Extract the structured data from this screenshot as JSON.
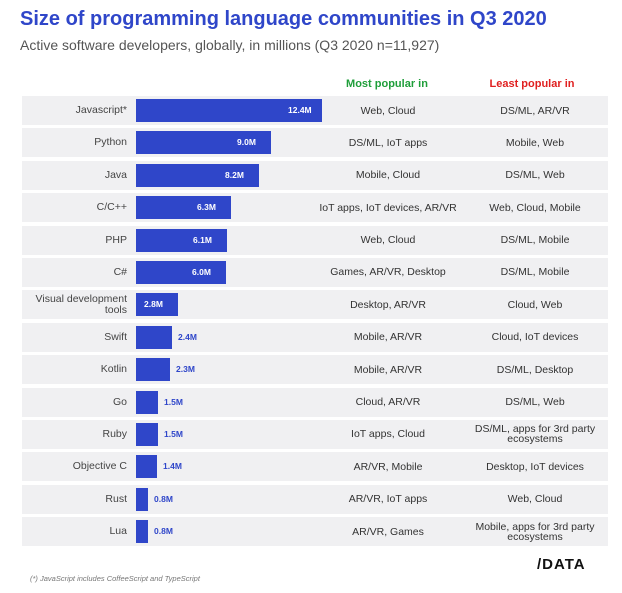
{
  "header": {
    "title": "Size of programming language communities in Q3 2020",
    "subtitle": "Active software developers, globally, in millions (Q3 2020 n=11,927)"
  },
  "columns": {
    "most_popular": "Most popular in",
    "least_popular": "Least popular in"
  },
  "colors": {
    "bar": "#2f46c9",
    "title": "#2f46c9",
    "most_header": "#1f9e3a",
    "least_header": "#e02020",
    "row_background": "#f0f0f2"
  },
  "chart_data": {
    "type": "bar",
    "orientation": "horizontal",
    "unit": "millions",
    "xlim": [
      0,
      12.4
    ],
    "categories": [
      "Javascript*",
      "Python",
      "Java",
      "C/C++",
      "PHP",
      "C#",
      "Visual development tools",
      "Swift",
      "Kotlin",
      "Go",
      "Ruby",
      "Objective C",
      "Rust",
      "Lua"
    ],
    "values": [
      12.4,
      9.0,
      8.2,
      6.3,
      6.1,
      6.0,
      2.8,
      2.4,
      2.3,
      1.5,
      1.5,
      1.4,
      0.8,
      0.8
    ],
    "value_labels": [
      "12.4M",
      "9.0M",
      "8.2M",
      "6.3M",
      "6.1M",
      "6.0M",
      "2.8M",
      "2.4M",
      "2.3M",
      "1.5M",
      "1.5M",
      "1.4M",
      "0.8M",
      "0.8M"
    ],
    "most_popular_in": [
      "Web, Cloud",
      "DS/ML, IoT apps",
      "Mobile, Cloud",
      "IoT apps, IoT devices, AR/VR",
      "Web, Cloud",
      "Games, AR/VR, Desktop",
      "Desktop, AR/VR",
      "Mobile, AR/VR",
      "Mobile, AR/VR",
      "Cloud, AR/VR",
      "IoT apps, Cloud",
      "AR/VR, Mobile",
      "AR/VR, IoT apps",
      "AR/VR, Games"
    ],
    "least_popular_in": [
      "DS/ML, AR/VR",
      "Mobile, Web",
      "DS/ML, Web",
      "Web, Cloud, Mobile",
      "DS/ML, Mobile",
      "DS/ML, Mobile",
      "Cloud, Web",
      "Cloud, IoT devices",
      "DS/ML, Desktop",
      "DS/ML, Web",
      "DS/ML, apps for 3rd party ecosystems",
      "Desktop, IoT devices",
      "Web, Cloud",
      "Mobile, apps for 3rd party ecosystems"
    ],
    "grid": false,
    "legend": "none"
  },
  "footnote": "(*) JavaScript includes CoffeeScript and TypeScript",
  "logo": "/DATA"
}
